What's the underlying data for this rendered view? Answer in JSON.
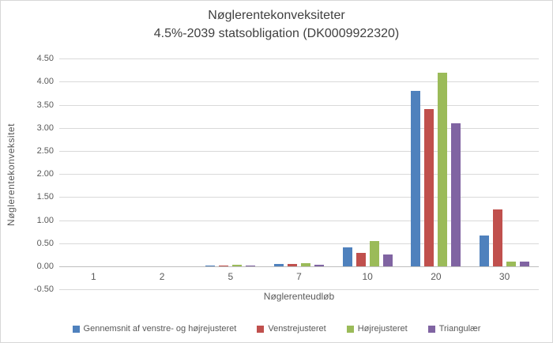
{
  "chart_data": {
    "type": "bar",
    "title": "Nøglerentekonveksiteter",
    "subtitle": "4.5%-2039 statsobligation (DK0009922320)",
    "xlabel": "Nøglerenteudløb",
    "ylabel": "Nøglerentekonveksitet",
    "categories": [
      "1",
      "2",
      "5",
      "7",
      "10",
      "20",
      "30"
    ],
    "series": [
      {
        "name": "Gennemsnit af venstre- og højrejusteret",
        "color": "#4F81BD",
        "values": [
          0.0,
          0.0,
          0.02,
          0.06,
          0.42,
          3.8,
          0.67
        ]
      },
      {
        "name": "Venstrejusteret",
        "color": "#C0504D",
        "values": [
          0.0,
          0.0,
          0.02,
          0.05,
          0.3,
          3.4,
          1.23
        ]
      },
      {
        "name": "Højrejusteret",
        "color": "#9BBB59",
        "values": [
          0.0,
          0.0,
          0.03,
          0.07,
          0.55,
          4.2,
          0.11
        ]
      },
      {
        "name": "Triangulær",
        "color": "#8064A2",
        "values": [
          0.0,
          0.0,
          0.02,
          0.03,
          0.26,
          3.1,
          0.11
        ]
      }
    ],
    "ylim": [
      -0.5,
      4.5
    ],
    "ytick_step": 0.5,
    "ytick_labels": [
      "4.50",
      "4.00",
      "3.50",
      "3.00",
      "2.50",
      "2.00",
      "1.50",
      "1.00",
      "0.50",
      "0.00",
      "-0.50"
    ],
    "grid": true,
    "legend_position": "bottom",
    "colors": {
      "gridline": "#d9d9d9",
      "zero_axis": "#bfbfbf",
      "text": "#595959",
      "title_text": "#404040"
    }
  }
}
